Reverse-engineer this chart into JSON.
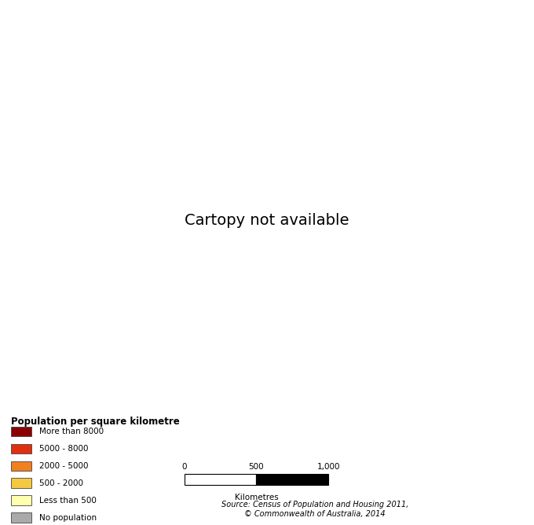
{
  "legend_title": "Population per square kilometre",
  "legend_items": [
    {
      "label": "More than 8000",
      "color": "#8B0000"
    },
    {
      "label": "5000 - 8000",
      "color": "#E03010"
    },
    {
      "label": "2000 - 5000",
      "color": "#F08020"
    },
    {
      "label": "500 - 2000",
      "color": "#F5C842"
    },
    {
      "label": "Less than 500",
      "color": "#FFFFB0"
    },
    {
      "label": "No population",
      "color": "#AAAAAA"
    }
  ],
  "source_text": "Source: Census of Population and Housing 2011,\n© Commonwealth of Australia, 2014",
  "scalebar_label": "Kilometres",
  "scalebar_ticks": [
    "0",
    "500",
    "1,000"
  ],
  "background_color": "#FFFFFF",
  "land_color": "#FFFFB0",
  "land_edge_color": "#888888",
  "state_edge_color": "#888888",
  "map_extent": [
    112.5,
    154.5,
    -44.5,
    -9.5
  ],
  "fig_width": 6.8,
  "fig_height": 6.68,
  "dpi": 100
}
